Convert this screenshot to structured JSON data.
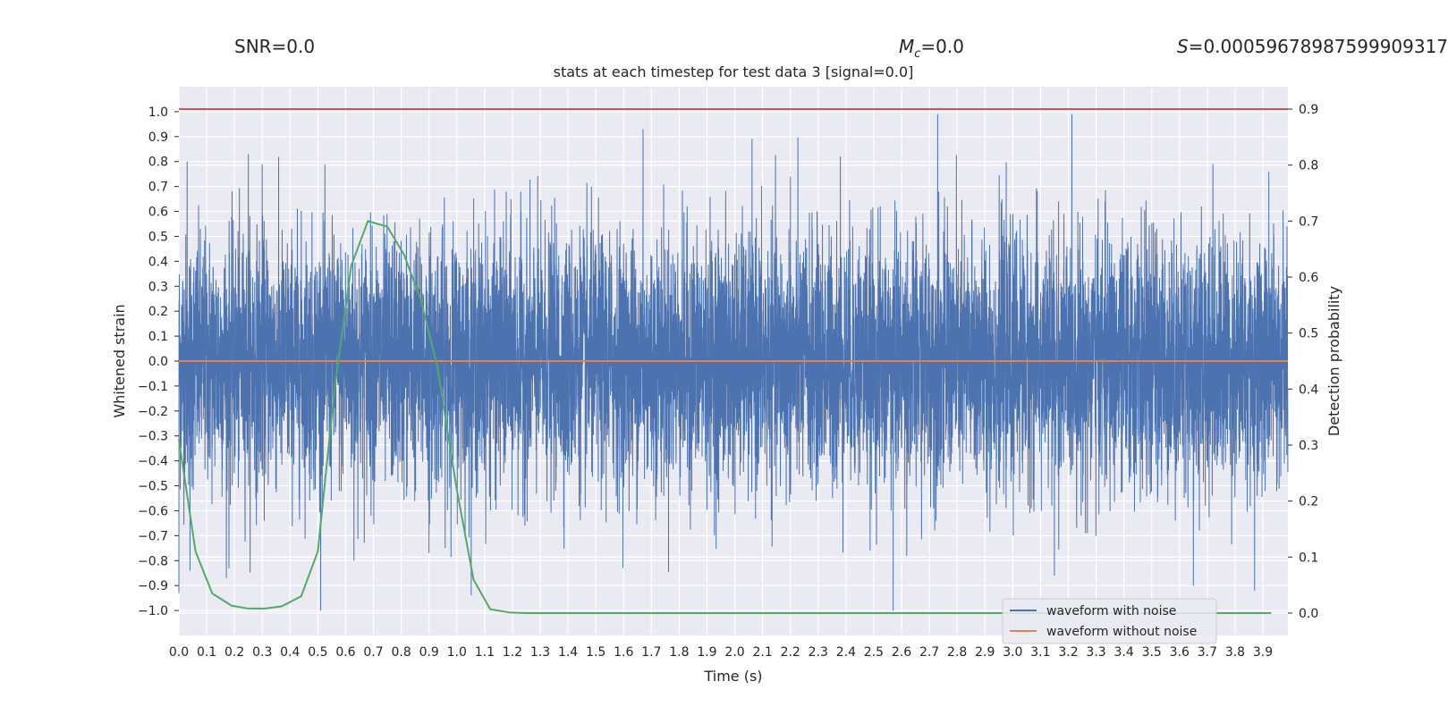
{
  "header": {
    "snr": "SNR=0.0",
    "mc_symbol": "M",
    "mc_sub": "c",
    "mc_value": "=0.0",
    "s_symbol": "S",
    "s_value": "=0.00059678987599909317"
  },
  "chart_data": {
    "type": "line",
    "title": "stats at each timestep for test data 3 [signal=0.0]",
    "xlabel": "Time (s)",
    "ylabel": "Whitened strain",
    "ylabel_right": "Detection probability",
    "xlim": [
      0.0,
      3.99
    ],
    "ylim": [
      -1.1,
      1.1
    ],
    "ylim_right": [
      -0.04,
      0.94
    ],
    "x_ticks": [
      0.0,
      0.1,
      0.2,
      0.3,
      0.4,
      0.5,
      0.6,
      0.7,
      0.8,
      0.9,
      1.0,
      1.1,
      1.2,
      1.3,
      1.4,
      1.5,
      1.6,
      1.7,
      1.8,
      1.9,
      2.0,
      2.1,
      2.2,
      2.3,
      2.4,
      2.5,
      2.6,
      2.7,
      2.8,
      2.9,
      3.0,
      3.1,
      3.2,
      3.3,
      3.4,
      3.5,
      3.6,
      3.7,
      3.8,
      3.9
    ],
    "y_ticks": [
      -1.0,
      -0.9,
      -0.8,
      -0.7,
      -0.6,
      -0.5,
      -0.4,
      -0.3,
      -0.2,
      -0.1,
      0.0,
      0.1,
      0.2,
      0.3,
      0.4,
      0.5,
      0.6,
      0.7,
      0.8,
      0.9,
      1.0
    ],
    "y_ticks_right": [
      0.0,
      0.1,
      0.2,
      0.3,
      0.4,
      0.5,
      0.6,
      0.7,
      0.8,
      0.9
    ],
    "grid": true,
    "legend_position": "lower-right",
    "colors": {
      "background": "#eaeaf2",
      "grid": "#ffffff",
      "waveform_with_noise": "#4c72b0",
      "waveform_without_noise": "#dd8452",
      "detection_probability": "#55a868",
      "threshold": "#c44e52"
    },
    "series": [
      {
        "name": "waveform with noise",
        "axis": "left",
        "sample_rate_hz": 2048,
        "amplitude_stats": {
          "approx_std": 0.25,
          "min": -1.0,
          "max": 0.99
        },
        "notable_peaks": [
          {
            "x": 0.0,
            "y": -0.93
          },
          {
            "x": 0.03,
            "y": 0.8
          },
          {
            "x": 0.04,
            "y": -0.84
          },
          {
            "x": 0.18,
            "y": -0.83
          },
          {
            "x": 0.25,
            "y": 0.83
          },
          {
            "x": 0.3,
            "y": 0.79
          },
          {
            "x": 0.63,
            "y": -0.8
          },
          {
            "x": 0.9,
            "y": -0.77
          },
          {
            "x": 1.67,
            "y": 0.93
          },
          {
            "x": 2.2,
            "y": 0.74
          },
          {
            "x": 2.38,
            "y": 0.82
          },
          {
            "x": 2.57,
            "y": -1.0
          },
          {
            "x": 2.73,
            "y": 0.99
          },
          {
            "x": 3.15,
            "y": -0.86
          },
          {
            "x": 3.65,
            "y": -0.9
          },
          {
            "x": 3.72,
            "y": 0.79
          },
          {
            "x": 3.87,
            "y": -0.92
          }
        ]
      },
      {
        "name": "waveform without noise",
        "axis": "left",
        "x": [
          0.0,
          3.99
        ],
        "y": [
          0.0,
          0.0
        ]
      },
      {
        "name": "",
        "axis": "right",
        "x": [
          0.0,
          0.06,
          0.12,
          0.19,
          0.25,
          0.31,
          0.37,
          0.44,
          0.5,
          0.56,
          0.62,
          0.68,
          0.75,
          0.81,
          0.87,
          0.93,
          1.0,
          1.06,
          1.12,
          1.19,
          1.25,
          1.31,
          1.37,
          1.44,
          1.5,
          1.56,
          1.62,
          1.68,
          1.75,
          1.81,
          1.87,
          1.93,
          2.0,
          2.06,
          2.12,
          2.19,
          2.25,
          2.31,
          2.37,
          2.44,
          2.5,
          2.56,
          2.62,
          2.68,
          2.75,
          2.81,
          2.87,
          2.93,
          3.0,
          3.06,
          3.12,
          3.19,
          3.25,
          3.31,
          3.37,
          3.44,
          3.5,
          3.56,
          3.62,
          3.68,
          3.75,
          3.81,
          3.87,
          3.93
        ],
        "y": [
          0.31,
          0.11,
          0.035,
          0.013,
          0.008,
          0.008,
          0.012,
          0.03,
          0.11,
          0.4,
          0.62,
          0.7,
          0.69,
          0.64,
          0.56,
          0.44,
          0.22,
          0.06,
          0.007,
          0.001,
          0.0,
          0.0,
          0.0,
          0.0,
          0.0,
          0.0,
          0.0,
          0.0,
          0.0,
          0.0,
          0.0,
          0.0,
          0.0,
          0.0,
          0.0,
          0.0,
          0.0,
          0.0,
          0.0,
          0.0,
          0.0,
          0.0,
          0.0,
          0.0,
          0.0,
          0.0,
          0.0,
          0.0,
          0.0,
          0.0,
          0.0,
          0.0,
          0.0,
          0.0,
          0.0,
          0.0,
          0.0,
          0.0,
          0.0,
          0.0,
          0.0,
          0.0,
          0.0,
          0.0
        ]
      },
      {
        "name": "",
        "axis": "right",
        "x": [
          0.0,
          3.99
        ],
        "y": [
          0.9,
          0.9
        ]
      }
    ]
  }
}
